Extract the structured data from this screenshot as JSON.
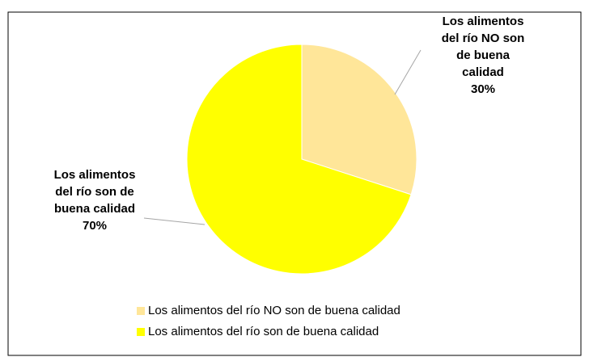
{
  "chart_data": {
    "type": "pie",
    "categories": [
      "Los alimentos del río NO son de buena calidad",
      "Los alimentos del río son de buena calidad"
    ],
    "values": [
      30,
      70
    ],
    "value_labels": [
      "30%",
      "70%"
    ],
    "colors": [
      "#FFE699",
      "#FFFF00"
    ],
    "legend": "bottom"
  }
}
